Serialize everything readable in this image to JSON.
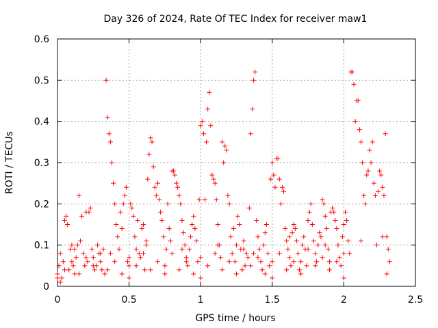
{
  "chart_data": {
    "type": "scatter",
    "title": "Day 326 of 2024, Rate Of TEC Index for receiver maw1",
    "xlabel": "GPS time / hours",
    "ylabel": "ROTI / TECUs",
    "xlim": [
      0,
      2.5
    ],
    "ylim": [
      0,
      0.6
    ],
    "xticks": [
      "0",
      "0.5",
      "1",
      "1.5",
      "2",
      "2.5"
    ],
    "yticks": [
      "0",
      "0.1",
      "0.2",
      "0.3",
      "0.4",
      "0.5",
      "0.6"
    ],
    "xtick_values": [
      0,
      0.5,
      1,
      1.5,
      2,
      2.5
    ],
    "ytick_values": [
      0,
      0.1,
      0.2,
      0.3,
      0.4,
      0.5,
      0.6
    ],
    "grid": true,
    "marker": "+",
    "color": "#ff0000",
    "series": [
      {
        "points": [
          [
            0.0,
            0.03
          ],
          [
            0.01,
            0.05
          ],
          [
            0.02,
            0.08
          ],
          [
            0.03,
            0.02
          ],
          [
            0.04,
            0.06
          ],
          [
            0.05,
            0.16
          ],
          [
            0.06,
            0.17
          ],
          [
            0.07,
            0.15
          ],
          [
            0.08,
            0.04
          ],
          [
            0.09,
            0.09
          ],
          [
            0.1,
            0.1
          ],
          [
            0.11,
            0.05
          ],
          [
            0.12,
            0.03
          ],
          [
            0.13,
            0.07
          ],
          [
            0.14,
            0.1
          ],
          [
            0.15,
            0.22
          ],
          [
            0.16,
            0.11
          ],
          [
            0.17,
            0.17
          ],
          [
            0.18,
            0.08
          ],
          [
            0.19,
            0.05
          ],
          [
            0.2,
            0.18
          ],
          [
            0.21,
            0.06
          ],
          [
            0.22,
            0.18
          ],
          [
            0.23,
            0.19
          ],
          [
            0.24,
            0.09
          ],
          [
            0.25,
            0.07
          ],
          [
            0.26,
            0.04
          ],
          [
            0.27,
            0.05
          ],
          [
            0.28,
            0.1
          ],
          [
            0.29,
            0.08
          ],
          [
            0.3,
            0.06
          ],
          [
            0.31,
            0.04
          ],
          [
            0.32,
            0.09
          ],
          [
            0.33,
            0.03
          ],
          [
            0.34,
            0.5
          ],
          [
            0.35,
            0.41
          ],
          [
            0.36,
            0.37
          ],
          [
            0.37,
            0.35
          ],
          [
            0.38,
            0.3
          ],
          [
            0.39,
            0.25
          ],
          [
            0.4,
            0.2
          ],
          [
            0.41,
            0.15
          ],
          [
            0.42,
            0.12
          ],
          [
            0.43,
            0.09
          ],
          [
            0.44,
            0.18
          ],
          [
            0.45,
            0.14
          ],
          [
            0.46,
            0.2
          ],
          [
            0.47,
            0.22
          ],
          [
            0.48,
            0.24
          ],
          [
            0.49,
            0.06
          ],
          [
            0.5,
            0.05
          ],
          [
            0.51,
            0.2
          ],
          [
            0.52,
            0.19
          ],
          [
            0.53,
            0.17
          ],
          [
            0.54,
            0.12
          ],
          [
            0.55,
            0.09
          ],
          [
            0.56,
            0.16
          ],
          [
            0.57,
            0.08
          ],
          [
            0.58,
            0.07
          ],
          [
            0.59,
            0.14
          ],
          [
            0.6,
            0.15
          ],
          [
            0.61,
            0.04
          ],
          [
            0.62,
            0.1
          ],
          [
            0.63,
            0.26
          ],
          [
            0.64,
            0.32
          ],
          [
            0.65,
            0.36
          ],
          [
            0.66,
            0.35
          ],
          [
            0.67,
            0.29
          ],
          [
            0.68,
            0.24
          ],
          [
            0.69,
            0.22
          ],
          [
            0.7,
            0.25
          ],
          [
            0.71,
            0.21
          ],
          [
            0.72,
            0.18
          ],
          [
            0.73,
            0.16
          ],
          [
            0.74,
            0.12
          ],
          [
            0.75,
            0.05
          ],
          [
            0.76,
            0.09
          ],
          [
            0.77,
            0.2
          ],
          [
            0.78,
            0.14
          ],
          [
            0.79,
            0.11
          ],
          [
            0.8,
            0.28
          ],
          [
            0.81,
            0.28
          ],
          [
            0.82,
            0.27
          ],
          [
            0.83,
            0.25
          ],
          [
            0.84,
            0.24
          ],
          [
            0.85,
            0.22
          ],
          [
            0.86,
            0.2
          ],
          [
            0.87,
            0.16
          ],
          [
            0.88,
            0.13
          ],
          [
            0.89,
            0.1
          ],
          [
            0.9,
            0.07
          ],
          [
            0.91,
            0.05
          ],
          [
            0.92,
            0.09
          ],
          [
            0.93,
            0.12
          ],
          [
            0.94,
            0.15
          ],
          [
            0.95,
            0.17
          ],
          [
            0.96,
            0.14
          ],
          [
            0.97,
            0.11
          ],
          [
            0.98,
            0.06
          ],
          [
            0.99,
            0.21
          ],
          [
            1.0,
            0.39
          ],
          [
            1.01,
            0.4
          ],
          [
            1.02,
            0.37
          ],
          [
            1.03,
            0.21
          ],
          [
            1.04,
            0.35
          ],
          [
            1.05,
            0.43
          ],
          [
            1.06,
            0.47
          ],
          [
            1.07,
            0.39
          ],
          [
            1.08,
            0.27
          ],
          [
            1.09,
            0.26
          ],
          [
            1.1,
            0.25
          ],
          [
            1.11,
            0.21
          ],
          [
            1.12,
            0.15
          ],
          [
            1.13,
            0.1
          ],
          [
            1.14,
            0.07
          ],
          [
            1.15,
            0.35
          ],
          [
            1.16,
            0.3
          ],
          [
            1.17,
            0.34
          ],
          [
            1.18,
            0.33
          ],
          [
            1.19,
            0.22
          ],
          [
            1.2,
            0.2
          ],
          [
            1.21,
            0.12
          ],
          [
            1.22,
            0.08
          ],
          [
            1.23,
            0.14
          ],
          [
            1.24,
            0.06
          ],
          [
            1.25,
            0.1
          ],
          [
            1.26,
            0.17
          ],
          [
            1.27,
            0.15
          ],
          [
            1.28,
            0.09
          ],
          [
            1.29,
            0.04
          ],
          [
            1.3,
            0.11
          ],
          [
            1.31,
            0.05
          ],
          [
            1.32,
            0.08
          ],
          [
            1.33,
            0.07
          ],
          [
            1.34,
            0.19
          ],
          [
            1.35,
            0.37
          ],
          [
            1.36,
            0.43
          ],
          [
            1.37,
            0.5
          ],
          [
            1.38,
            0.52
          ],
          [
            1.39,
            0.16
          ],
          [
            1.4,
            0.12
          ],
          [
            1.41,
            0.09
          ],
          [
            1.42,
            0.06
          ],
          [
            1.43,
            0.04
          ],
          [
            1.44,
            0.1
          ],
          [
            1.45,
            0.13
          ],
          [
            1.46,
            0.15
          ],
          [
            1.47,
            0.08
          ],
          [
            1.48,
            0.05
          ],
          [
            1.49,
            0.26
          ],
          [
            1.5,
            0.3
          ],
          [
            1.51,
            0.27
          ],
          [
            1.52,
            0.24
          ],
          [
            1.53,
            0.31
          ],
          [
            1.54,
            0.31
          ],
          [
            1.55,
            0.26
          ],
          [
            1.56,
            0.2
          ],
          [
            1.57,
            0.24
          ],
          [
            1.58,
            0.23
          ],
          [
            1.59,
            0.14
          ],
          [
            1.6,
            0.11
          ],
          [
            1.61,
            0.09
          ],
          [
            1.62,
            0.07
          ],
          [
            1.63,
            0.05
          ],
          [
            1.64,
            0.13
          ],
          [
            1.65,
            0.15
          ],
          [
            1.66,
            0.14
          ],
          [
            1.67,
            0.11
          ],
          [
            1.68,
            0.08
          ],
          [
            1.69,
            0.04
          ],
          [
            1.7,
            0.06
          ],
          [
            1.71,
            0.1
          ],
          [
            1.72,
            0.12
          ],
          [
            1.73,
            0.09
          ],
          [
            1.74,
            0.05
          ],
          [
            1.75,
            0.16
          ],
          [
            1.76,
            0.18
          ],
          [
            1.77,
            0.2
          ],
          [
            1.78,
            0.15
          ],
          [
            1.79,
            0.11
          ],
          [
            1.8,
            0.08
          ],
          [
            1.81,
            0.06
          ],
          [
            1.82,
            0.1
          ],
          [
            1.83,
            0.13
          ],
          [
            1.84,
            0.12
          ],
          [
            1.85,
            0.21
          ],
          [
            1.86,
            0.2
          ],
          [
            1.87,
            0.17
          ],
          [
            1.88,
            0.14
          ],
          [
            1.89,
            0.09
          ],
          [
            1.9,
            0.06
          ],
          [
            1.91,
            0.18
          ],
          [
            1.92,
            0.19
          ],
          [
            1.93,
            0.18
          ],
          [
            1.94,
            0.16
          ],
          [
            1.95,
            0.14
          ],
          [
            1.96,
            0.1
          ],
          [
            1.97,
            0.07
          ],
          [
            1.98,
            0.05
          ],
          [
            1.99,
            0.12
          ],
          [
            2.0,
            0.15
          ],
          [
            2.01,
            0.18
          ],
          [
            2.02,
            0.16
          ],
          [
            2.03,
            0.11
          ],
          [
            2.04,
            0.08
          ],
          [
            2.05,
            0.52
          ],
          [
            2.06,
            0.52
          ],
          [
            2.07,
            0.49
          ],
          [
            2.08,
            0.4
          ],
          [
            2.09,
            0.45
          ],
          [
            2.1,
            0.45
          ],
          [
            2.11,
            0.38
          ],
          [
            2.12,
            0.35
          ],
          [
            2.13,
            0.3
          ],
          [
            2.14,
            0.22
          ],
          [
            2.15,
            0.2
          ],
          [
            2.16,
            0.27
          ],
          [
            2.17,
            0.28
          ],
          [
            2.18,
            0.33
          ],
          [
            2.19,
            0.3
          ],
          [
            2.2,
            0.35
          ],
          [
            2.21,
            0.25
          ],
          [
            2.22,
            0.22
          ],
          [
            2.23,
            0.1
          ],
          [
            2.24,
            0.23
          ],
          [
            2.25,
            0.28
          ],
          [
            2.26,
            0.27
          ],
          [
            2.27,
            0.24
          ],
          [
            2.28,
            0.22
          ],
          [
            2.29,
            0.37
          ],
          [
            2.3,
            0.12
          ],
          [
            2.31,
            0.09
          ],
          [
            2.32,
            0.06
          ],
          [
            2.0,
            0.08
          ],
          [
            1.95,
            0.06
          ],
          [
            1.9,
            0.04
          ],
          [
            1.85,
            0.07
          ],
          [
            1.8,
            0.05
          ],
          [
            1.75,
            0.09
          ],
          [
            1.7,
            0.03
          ],
          [
            1.65,
            0.06
          ],
          [
            1.6,
            0.04
          ],
          [
            1.55,
            0.08
          ],
          [
            1.5,
            0.06
          ],
          [
            1.45,
            0.03
          ],
          [
            1.4,
            0.07
          ],
          [
            1.35,
            0.05
          ],
          [
            1.3,
            0.09
          ],
          [
            1.25,
            0.03
          ],
          [
            1.2,
            0.06
          ],
          [
            1.15,
            0.04
          ],
          [
            1.1,
            0.08
          ],
          [
            1.05,
            0.05
          ],
          [
            1.0,
            0.07
          ],
          [
            0.95,
            0.03
          ],
          [
            0.9,
            0.06
          ],
          [
            0.85,
            0.04
          ],
          [
            0.8,
            0.08
          ],
          [
            0.75,
            0.03
          ],
          [
            0.7,
            0.06
          ],
          [
            0.65,
            0.04
          ],
          [
            0.6,
            0.08
          ],
          [
            0.55,
            0.05
          ],
          [
            0.5,
            0.07
          ],
          [
            0.45,
            0.03
          ],
          [
            0.4,
            0.06
          ],
          [
            0.35,
            0.04
          ],
          [
            0.3,
            0.08
          ],
          [
            0.25,
            0.05
          ],
          [
            0.2,
            0.07
          ],
          [
            0.15,
            0.03
          ],
          [
            0.1,
            0.06
          ],
          [
            0.05,
            0.04
          ],
          [
            0.0,
            0.02
          ],
          [
            0.02,
            0.01
          ],
          [
            0.5,
            0.02
          ],
          [
            1.0,
            0.02
          ],
          [
            1.5,
            0.02
          ],
          [
            2.0,
            0.02
          ],
          [
            2.3,
            0.03
          ],
          [
            0.12,
            0.09
          ],
          [
            0.62,
            0.11
          ],
          [
            1.12,
            0.1
          ],
          [
            1.62,
            0.12
          ],
          [
            2.12,
            0.11
          ],
          [
            0.37,
            0.08
          ],
          [
            0.87,
            0.09
          ],
          [
            1.37,
            0.08
          ],
          [
            1.87,
            0.1
          ],
          [
            2.27,
            0.12
          ]
        ]
      }
    ]
  }
}
